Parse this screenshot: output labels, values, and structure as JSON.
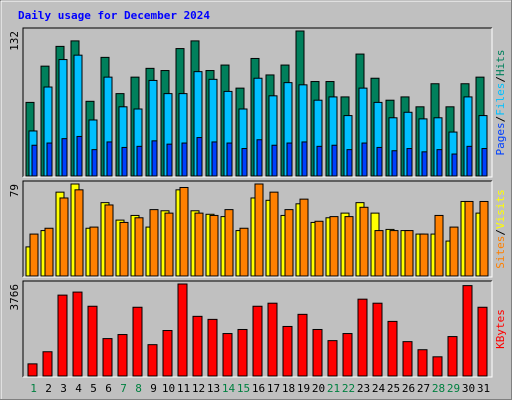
{
  "title": "Daily usage for December 2024",
  "separator": "/",
  "weekend_color": "#008040",
  "chart_data": [
    {
      "type": "bar",
      "ylim": [
        0,
        132
      ],
      "yticks": [
        132
      ],
      "series": [
        {
          "name": "Hits",
          "color": "#00805c",
          "values": [
            67,
            100,
            118,
            123,
            68,
            108,
            75,
            90,
            98,
            96,
            116,
            123,
            96,
            101,
            80,
            107,
            92,
            101,
            132,
            86,
            86,
            72,
            111,
            89,
            69,
            72,
            63,
            84,
            63,
            84,
            90
          ]
        },
        {
          "name": "Files",
          "color": "#00c0ff",
          "values": [
            41,
            81,
            106,
            110,
            51,
            90,
            63,
            61,
            87,
            75,
            75,
            95,
            88,
            77,
            61,
            89,
            73,
            85,
            83,
            69,
            72,
            55,
            80,
            67,
            53,
            58,
            52,
            53,
            40,
            72,
            55
          ]
        },
        {
          "name": "Pages",
          "color": "#0040ff",
          "values": [
            28,
            30,
            34,
            36,
            24,
            31,
            26,
            27,
            32,
            29,
            30,
            35,
            31,
            30,
            25,
            33,
            28,
            30,
            31,
            27,
            28,
            24,
            30,
            26,
            23,
            25,
            22,
            24,
            20,
            27,
            25
          ]
        }
      ]
    },
    {
      "type": "bar",
      "ylim": [
        0,
        79
      ],
      "yticks": [
        79
      ],
      "series": [
        {
          "name": "Visits",
          "color": "#ffff00",
          "values": [
            25,
            39,
            72,
            79,
            41,
            63,
            48,
            52,
            42,
            56,
            74,
            56,
            53,
            51,
            39,
            67,
            65,
            52,
            62,
            46,
            50,
            54,
            63,
            54,
            40,
            39,
            36,
            36,
            30,
            64,
            54
          ]
        },
        {
          "name": "Sites",
          "color": "#ff8000",
          "values": [
            36,
            41,
            67,
            74,
            42,
            61,
            46,
            50,
            57,
            54,
            76,
            54,
            52,
            57,
            41,
            79,
            72,
            57,
            66,
            47,
            51,
            51,
            59,
            39,
            39,
            39,
            36,
            52,
            42,
            64,
            64
          ]
        }
      ]
    },
    {
      "type": "bar",
      "ylim": [
        0,
        3766
      ],
      "yticks": [
        3766
      ],
      "categories": [
        "1",
        "2",
        "3",
        "4",
        "5",
        "6",
        "7",
        "8",
        "9",
        "10",
        "11",
        "12",
        "13",
        "14",
        "15",
        "16",
        "17",
        "18",
        "19",
        "20",
        "21",
        "22",
        "23",
        "24",
        "25",
        "26",
        "27",
        "28",
        "29",
        "30",
        "31"
      ],
      "weekend": [
        true,
        false,
        false,
        false,
        false,
        false,
        true,
        true,
        false,
        false,
        false,
        false,
        false,
        true,
        true,
        false,
        false,
        false,
        false,
        false,
        true,
        true,
        false,
        false,
        false,
        false,
        false,
        true,
        true,
        false,
        false
      ],
      "series": [
        {
          "name": "KBytes",
          "color": "#ff0000",
          "values": [
            497,
            993,
            3311,
            3435,
            2855,
            1531,
            1697,
            2814,
            1283,
            1862,
            3766,
            2442,
            2318,
            1738,
            1904,
            2855,
            2980,
            2028,
            2524,
            1904,
            1448,
            1738,
            3145,
            2980,
            2235,
            1407,
            1076,
            786,
            1614,
            3700,
            2814
          ]
        }
      ]
    }
  ]
}
